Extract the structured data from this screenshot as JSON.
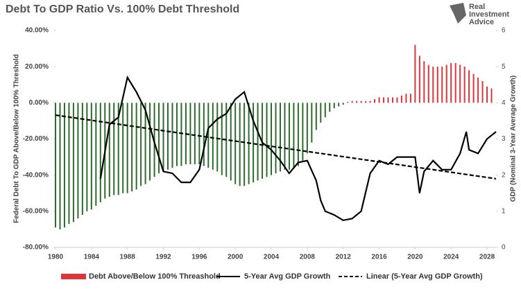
{
  "chart_data": {
    "type": "bar_line",
    "title": "Debt To GDP Ratio Vs. 100% Debt Threshold",
    "logo": [
      "Real",
      "Investment",
      "Advice"
    ],
    "ylabel": "Federal Debt To GDP Above/Below 100% Threshold",
    "y2label": "GDP (Nominal 3-Year Average Growth)",
    "xlim": [
      1980,
      2029
    ],
    "xticks": [
      1980,
      1984,
      1988,
      1992,
      1996,
      2000,
      2004,
      2008,
      2012,
      2016,
      2020,
      2024,
      2028
    ],
    "ylim": [
      -80,
      40
    ],
    "yticks": [
      {
        "value": -80,
        "label": "-80.00%"
      },
      {
        "value": -60,
        "label": "-60.00%"
      },
      {
        "value": -40,
        "label": "-40.00%"
      },
      {
        "value": -20,
        "label": "-20.00%"
      },
      {
        "value": 0,
        "label": "0.00%"
      },
      {
        "value": 20,
        "label": "20.00%"
      },
      {
        "value": 40,
        "label": "40.00%"
      }
    ],
    "y2lim": [
      0,
      6
    ],
    "y2ticks": [
      0,
      1,
      2,
      3,
      4,
      5,
      6
    ],
    "series": [
      {
        "name": "Debt Above/Below 100%  Threashold",
        "type": "bar",
        "color": "#e0333a",
        "negative_color": "#2d6a2d",
        "x": [
          1980,
          1980.5,
          1981,
          1981.5,
          1982,
          1982.5,
          1983,
          1983.5,
          1984,
          1984.5,
          1985,
          1985.5,
          1986,
          1986.5,
          1987,
          1987.5,
          1988,
          1988.5,
          1989,
          1989.5,
          1990,
          1990.5,
          1991,
          1991.5,
          1992,
          1992.5,
          1993,
          1993.5,
          1994,
          1994.5,
          1995,
          1995.5,
          1996,
          1996.5,
          1997,
          1997.5,
          1998,
          1998.5,
          1999,
          1999.5,
          2000,
          2000.5,
          2001,
          2001.5,
          2002,
          2002.5,
          2003,
          2003.5,
          2004,
          2004.5,
          2005,
          2005.5,
          2006,
          2006.5,
          2007,
          2007.5,
          2008,
          2008.5,
          2009,
          2009.5,
          2010,
          2010.5,
          2011,
          2011.5,
          2012,
          2012.5,
          2013,
          2013.5,
          2014,
          2014.5,
          2015,
          2015.5,
          2016,
          2016.5,
          2017,
          2017.5,
          2018,
          2018.5,
          2019,
          2019.5,
          2020,
          2020.5,
          2021,
          2021.5,
          2022,
          2022.5,
          2023,
          2023.5,
          2024,
          2024.5,
          2025,
          2025.5,
          2026,
          2026.5,
          2027,
          2027.5,
          2028,
          2028.5
        ],
        "values": [
          -69,
          -70,
          -69,
          -67,
          -66,
          -64,
          -62,
          -60,
          -59,
          -57,
          -55,
          -53,
          -52,
          -51,
          -51,
          -50,
          -50,
          -49,
          -48,
          -46,
          -45,
          -43,
          -41,
          -39,
          -38,
          -37,
          -36,
          -35,
          -35,
          -34,
          -34,
          -34,
          -34,
          -35,
          -36,
          -37,
          -38,
          -40,
          -41,
          -43,
          -45,
          -46,
          -46,
          -45,
          -44,
          -43,
          -42,
          -41,
          -40,
          -39,
          -38,
          -37,
          -37,
          -36,
          -35,
          -32,
          -28,
          -22,
          -15,
          -11,
          -8,
          -5,
          -3,
          -2,
          -1,
          0.5,
          1,
          1,
          1,
          1,
          1,
          2,
          3,
          3,
          3,
          3,
          3,
          4,
          5,
          5,
          32,
          26,
          23,
          21,
          20,
          20,
          20,
          21,
          22,
          22,
          21,
          20,
          18,
          16,
          14,
          12,
          9,
          8
        ]
      },
      {
        "name": "5-Year Avg GDP Growth",
        "type": "line",
        "axis": "y2",
        "color": "#000000",
        "dashed": false,
        "x": [
          1985,
          1986,
          1987,
          1988,
          1989,
          1990,
          1991,
          1992,
          1993,
          1994,
          1995,
          1996,
          1997,
          1998,
          1999,
          2000,
          2001,
          2002,
          2003,
          2004,
          2005,
          2006,
          2007,
          2008,
          2009,
          2009.5,
          2010,
          2011,
          2012,
          2013,
          2014,
          2015,
          2016,
          2017,
          2018,
          2019,
          2020,
          2020.5,
          2021,
          2022,
          2023,
          2024,
          2025,
          2025.7,
          2026,
          2027,
          2028,
          2029
        ],
        "values": [
          1.9,
          3.4,
          3.6,
          4.7,
          4.3,
          3.8,
          2.9,
          2.1,
          2.05,
          1.8,
          1.8,
          2.15,
          3.3,
          3.55,
          3.7,
          4.1,
          4.3,
          3.5,
          2.9,
          2.7,
          2.4,
          2.05,
          2.35,
          2.4,
          1.85,
          1.3,
          1.0,
          0.9,
          0.75,
          0.8,
          1.0,
          2.05,
          2.4,
          2.3,
          2.5,
          2.5,
          2.5,
          1.5,
          2.1,
          2.4,
          2.15,
          2.15,
          2.6,
          3.2,
          2.7,
          2.6,
          3.0,
          3.2
        ]
      },
      {
        "name": "Linear (5-Year Avg GDP Growth)",
        "type": "line",
        "axis": "y2",
        "color": "#000000",
        "dashed": true,
        "x": [
          1980,
          2029
        ],
        "values": [
          3.66,
          1.9
        ]
      }
    ]
  }
}
